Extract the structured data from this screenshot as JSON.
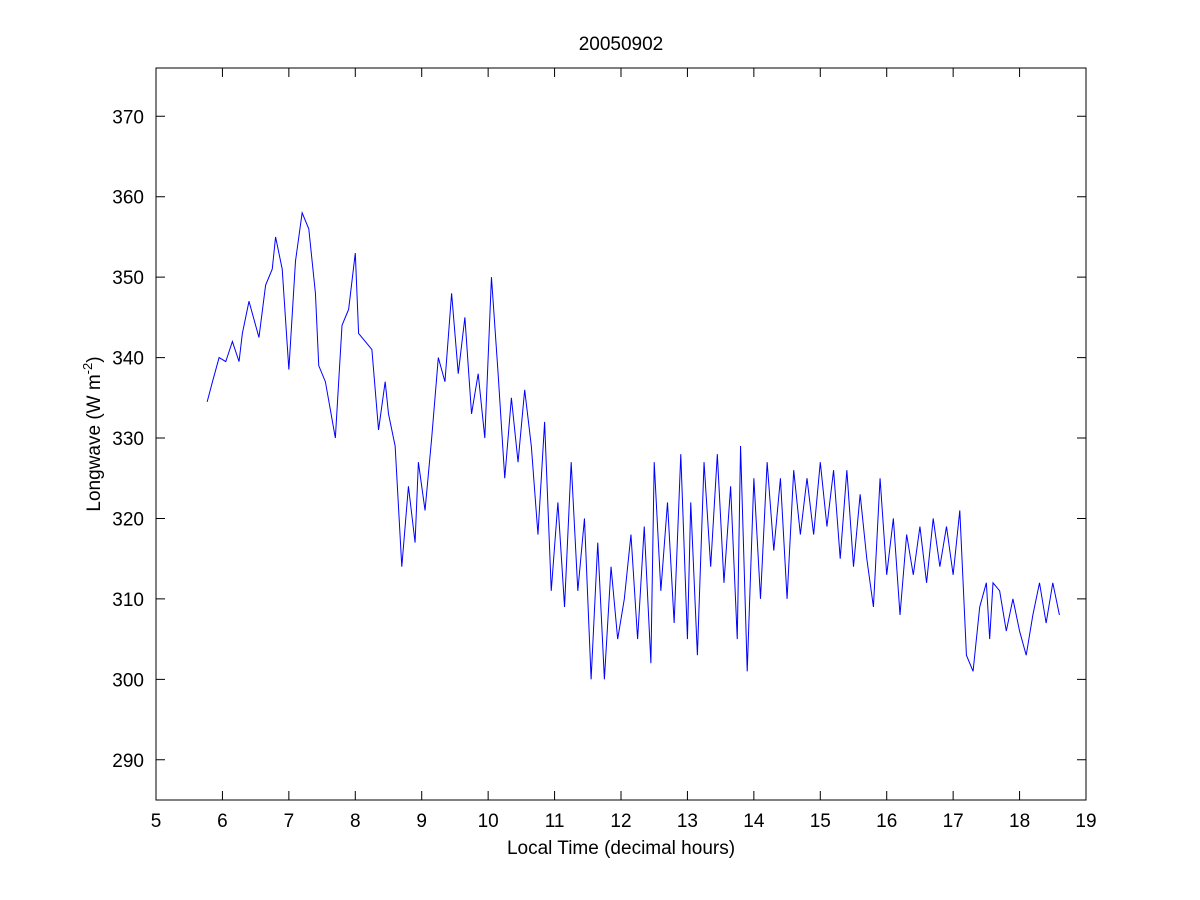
{
  "chart_data": {
    "type": "line",
    "title": "20050902",
    "xlabel": "Local Time (decimal hours)",
    "ylabel": [
      "Longwave (W m",
      "-2",
      ")"
    ],
    "xlim": [
      5,
      19
    ],
    "xticks": [
      5,
      6,
      7,
      8,
      9,
      10,
      11,
      12,
      13,
      14,
      15,
      16,
      17,
      18,
      19
    ],
    "ylim": [
      285,
      376
    ],
    "yticks": [
      290,
      300,
      310,
      320,
      330,
      340,
      350,
      360,
      370
    ],
    "series": [
      {
        "color": "#0000ff",
        "x": [
          5.77,
          5.85,
          5.95,
          6.05,
          6.15,
          6.25,
          6.3,
          6.4,
          6.55,
          6.65,
          6.75,
          6.8,
          6.9,
          7.0,
          7.1,
          7.2,
          7.3,
          7.4,
          7.45,
          7.55,
          7.7,
          7.8,
          7.9,
          8.0,
          8.05,
          8.15,
          8.25,
          8.35,
          8.45,
          8.5,
          8.6,
          8.7,
          8.8,
          8.9,
          8.95,
          9.05,
          9.15,
          9.25,
          9.35,
          9.45,
          9.55,
          9.65,
          9.75,
          9.85,
          9.95,
          10.05,
          10.15,
          10.25,
          10.35,
          10.45,
          10.55,
          10.65,
          10.75,
          10.85,
          10.95,
          11.05,
          11.15,
          11.25,
          11.35,
          11.45,
          11.55,
          11.65,
          11.75,
          11.85,
          11.95,
          12.05,
          12.15,
          12.25,
          12.35,
          12.45,
          12.5,
          12.6,
          12.7,
          12.8,
          12.9,
          13.0,
          13.05,
          13.15,
          13.25,
          13.35,
          13.45,
          13.55,
          13.65,
          13.75,
          13.8,
          13.9,
          14.0,
          14.1,
          14.2,
          14.3,
          14.4,
          14.5,
          14.6,
          14.7,
          14.8,
          14.9,
          15.0,
          15.1,
          15.2,
          15.3,
          15.4,
          15.5,
          15.6,
          15.7,
          15.8,
          15.9,
          16.0,
          16.1,
          16.2,
          16.3,
          16.4,
          16.5,
          16.6,
          16.7,
          16.8,
          16.9,
          17.0,
          17.1,
          17.2,
          17.3,
          17.4,
          17.5,
          17.55,
          17.6,
          17.7,
          17.8,
          17.9,
          18.0,
          18.1,
          18.2,
          18.3,
          18.4,
          18.5,
          18.6
        ],
        "values": [
          334.5,
          337,
          340,
          339.5,
          342,
          339.5,
          343,
          347,
          342.5,
          349,
          351,
          355,
          351,
          338.5,
          352,
          358,
          356,
          348,
          339,
          337,
          330,
          344,
          346,
          353,
          343,
          342,
          341,
          331,
          337,
          333,
          329,
          314,
          324,
          317,
          327,
          321,
          330,
          340,
          337,
          348,
          338,
          345,
          333,
          338,
          330,
          350,
          338,
          325,
          335,
          327,
          336,
          329,
          318,
          332,
          311,
          322,
          309,
          327,
          311,
          320,
          300,
          317,
          300,
          314,
          305,
          310,
          318,
          305,
          319,
          302,
          327,
          311,
          322,
          307,
          328,
          305,
          322,
          303,
          327,
          314,
          328,
          312,
          324,
          305,
          329,
          301,
          325,
          310,
          327,
          316,
          325,
          310,
          326,
          318,
          325,
          318,
          327,
          319,
          326,
          315,
          326,
          314,
          323,
          315,
          309,
          325,
          313,
          320,
          308,
          318,
          313,
          319,
          312,
          320,
          314,
          319,
          313,
          321,
          303,
          301,
          309,
          312,
          305,
          312,
          311,
          306,
          310,
          306,
          303,
          308,
          312,
          307,
          312,
          308
        ]
      }
    ]
  }
}
